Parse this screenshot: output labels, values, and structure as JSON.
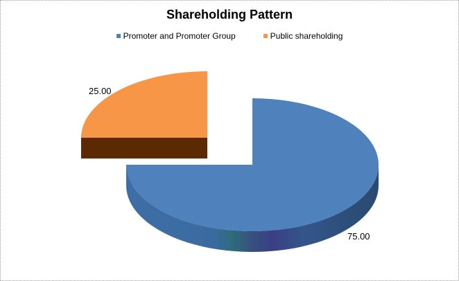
{
  "chart_data": {
    "type": "pie",
    "title": "Shareholding Pattern",
    "categories": [
      "Promoter and Promoter Group",
      "Public shareholding"
    ],
    "values": [
      75.0,
      25.0
    ],
    "data_labels": [
      "75.00",
      "25.00"
    ],
    "colors": [
      "#4f81bd",
      "#f79646"
    ],
    "exploded": [
      "Public shareholding"
    ],
    "style": "3d",
    "legend_position": "top"
  }
}
